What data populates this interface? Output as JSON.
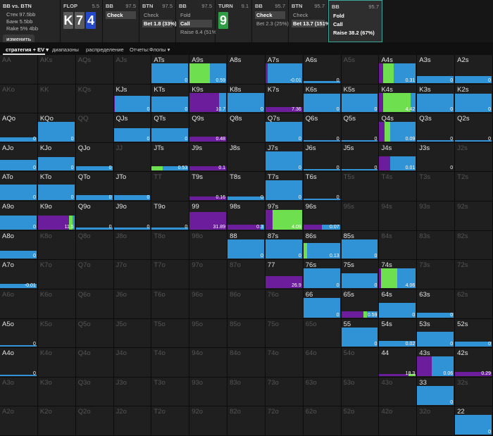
{
  "info": {
    "title": "BB vs. BTN",
    "lines": [
      "Стек 97.5bb",
      "Банк 5.5bb",
      "Rake 5% 4bb"
    ],
    "button": "изменить"
  },
  "header": [
    {
      "street": "FLOP",
      "pot": 5.5,
      "cards": [
        {
          "rank": "K",
          "color": "#5b5b5b"
        },
        {
          "rank": "7",
          "color": "#5b5b5b"
        },
        {
          "rank": "4",
          "color": "#2449c9"
        }
      ]
    },
    {
      "player": "BB",
      "stack": 97.5,
      "actions": [
        "Check"
      ],
      "selected": 0
    },
    {
      "player": "BTN",
      "stack": 97.5,
      "actions": [
        "Check",
        "Bet 1.8 (33%)"
      ],
      "selected": 1
    },
    {
      "player": "BB",
      "stack": 97.5,
      "actions": [
        "Fold",
        "Call",
        "Raise 6.4 (51%)"
      ],
      "selected": 1
    },
    {
      "street": "TURN",
      "pot": 9.1,
      "cards": [
        {
          "rank": "9",
          "color": "#2f9e44"
        }
      ]
    },
    {
      "player": "BB",
      "stack": 95.7,
      "actions": [
        "Check",
        "Bet 2.3 (25%)"
      ],
      "selected": 0
    },
    {
      "player": "BTN",
      "stack": 95.7,
      "actions": [
        "Check",
        "Bet 13.7 (151%)"
      ],
      "selected": 1
    },
    {
      "player": "BB",
      "stack": 95.7,
      "actions": [
        "Fold",
        "Call",
        "Raise 38.2 (67%)"
      ],
      "active": true
    }
  ],
  "tabs": [
    "стратегия + EV ▾",
    "диапазоны",
    "распределение",
    "Отчеты:Флопы ▾"
  ],
  "colors": {
    "raise": "#6c1d9c",
    "call": "#6ee04f",
    "fold": "#2f93d6"
  },
  "grid": [
    [
      {
        "hand": "AA"
      },
      {
        "hand": "AKs"
      },
      {
        "hand": "AQs"
      },
      {
        "hand": "AJs"
      },
      {
        "hand": "ATs",
        "weight": 100,
        "raise": 0,
        "call": 0,
        "fold": 100,
        "ev": 0
      },
      {
        "hand": "A9s",
        "weight": 100,
        "raise": 0,
        "call": 55,
        "fold": 45,
        "ev": 0.59
      },
      {
        "hand": "A8s",
        "weight": 0
      },
      {
        "hand": "A7s",
        "weight": 100,
        "raise": 5,
        "call": 0,
        "fold": 95,
        "ev": -0.01
      },
      {
        "hand": "A6s",
        "weight": 10,
        "raise": 0,
        "call": 0,
        "fold": 100,
        "ev": 0
      },
      {
        "hand": "A5s"
      },
      {
        "hand": "A4s",
        "weight": 100,
        "raise": 10,
        "call": 30,
        "fold": 60,
        "ev": 0.31
      },
      {
        "hand": "A3s",
        "weight": 35,
        "raise": 0,
        "call": 0,
        "fold": 100,
        "ev": 0
      },
      {
        "hand": "A2s",
        "weight": 35,
        "raise": 0,
        "call": 0,
        "fold": 100,
        "ev": 0
      }
    ],
    [
      {
        "hand": "AKo"
      },
      {
        "hand": "KK"
      },
      {
        "hand": "KQs"
      },
      {
        "hand": "KJs",
        "weight": 85,
        "raise": 3,
        "call": 0,
        "fold": 97,
        "ev": 0
      },
      {
        "hand": "KTs",
        "weight": 80,
        "raise": 0,
        "call": 0,
        "fold": 100,
        "ev": 0
      },
      {
        "hand": "K9s",
        "weight": 100,
        "raise": 80,
        "call": 0,
        "fold": 20,
        "ev": 10.7
      },
      {
        "hand": "K8s",
        "weight": 100,
        "raise": 0,
        "call": 0,
        "fold": 100,
        "ev": 0
      },
      {
        "hand": "K7s",
        "weight": 25,
        "raise": 100,
        "call": 0,
        "fold": 0,
        "ev": 7.36
      },
      {
        "hand": "K6s",
        "weight": 95,
        "raise": 0,
        "call": 0,
        "fold": 100,
        "ev": 0
      },
      {
        "hand": "K5s",
        "weight": 95,
        "raise": 0,
        "call": 0,
        "fold": 100,
        "ev": 0
      },
      {
        "hand": "K4s",
        "weight": 100,
        "raise": 10,
        "call": 75,
        "fold": 15,
        "ev": 4.42
      },
      {
        "hand": "K3s",
        "weight": 95,
        "raise": 0,
        "call": 0,
        "fold": 100,
        "ev": 0
      },
      {
        "hand": "K2s",
        "weight": 95,
        "raise": 0,
        "call": 0,
        "fold": 100,
        "ev": 0
      }
    ],
    [
      {
        "hand": "AQo",
        "weight": 20,
        "raise": 0,
        "call": 0,
        "fold": 100,
        "ev": 0
      },
      {
        "hand": "KQo",
        "weight": 100,
        "raise": 0,
        "call": 0,
        "fold": 100,
        "ev": 0
      },
      {
        "hand": "QQ"
      },
      {
        "hand": "QJs",
        "weight": 70,
        "raise": 0,
        "call": 0,
        "fold": 100,
        "ev": 0
      },
      {
        "hand": "QTs",
        "weight": 70,
        "raise": 0,
        "call": 0,
        "fold": 100,
        "ev": 0
      },
      {
        "hand": "Q9s",
        "weight": 25,
        "raise": 100,
        "call": 0,
        "fold": 0,
        "ev": 0.48
      },
      {
        "hand": "Q8s",
        "weight": 0
      },
      {
        "hand": "Q7s",
        "weight": 100,
        "raise": 0,
        "call": 0,
        "fold": 100,
        "ev": 0
      },
      {
        "hand": "Q6s",
        "weight": 8,
        "raise": 0,
        "call": 0,
        "fold": 100,
        "ev": 0
      },
      {
        "hand": "Q5s",
        "weight": 8,
        "raise": 0,
        "call": 0,
        "fold": 100,
        "ev": 0
      },
      {
        "hand": "Q4s",
        "weight": 100,
        "raise": 15,
        "call": 15,
        "fold": 70,
        "ev": 0.09
      },
      {
        "hand": "Q3s",
        "weight": 8,
        "raise": 0,
        "call": 0,
        "fold": 100,
        "ev": 0
      },
      {
        "hand": "Q2s",
        "weight": 8,
        "raise": 0,
        "call": 0,
        "fold": 100,
        "ev": 0
      }
    ],
    [
      {
        "hand": "AJo",
        "weight": 55,
        "raise": 0,
        "call": 0,
        "fold": 100,
        "ev": 0
      },
      {
        "hand": "KJo",
        "weight": 70,
        "raise": 0,
        "call": 0,
        "fold": 100,
        "ev": 0
      },
      {
        "hand": "QJo",
        "weight": 25,
        "raise": 0,
        "call": 0,
        "fold": 100,
        "ev": 0
      },
      {
        "hand": "JJ"
      },
      {
        "hand": "JTs",
        "weight": 25,
        "raise": 0,
        "call": 30,
        "fold": 70,
        "ev": 0.53
      },
      {
        "hand": "J9s",
        "weight": 25,
        "raise": 100,
        "call": 0,
        "fold": 0,
        "ev": 0.1
      },
      {
        "hand": "J8s",
        "weight": 0
      },
      {
        "hand": "J7s",
        "weight": 100,
        "raise": 0,
        "call": 0,
        "fold": 100,
        "ev": 0
      },
      {
        "hand": "J6s",
        "weight": 8,
        "raise": 0,
        "call": 0,
        "fold": 100,
        "ev": 0
      },
      {
        "hand": "J5s",
        "weight": 8,
        "raise": 0,
        "call": 0,
        "fold": 100,
        "ev": 0
      },
      {
        "hand": "J4s",
        "weight": 75,
        "raise": 30,
        "call": 0,
        "fold": 70,
        "ev": 0.01
      },
      {
        "hand": "J3s",
        "weight": 0,
        "ev": 0
      },
      {
        "hand": "J2s"
      }
    ],
    [
      {
        "hand": "ATo",
        "weight": 80,
        "raise": 0,
        "call": 0,
        "fold": 100,
        "ev": 0
      },
      {
        "hand": "KTo",
        "weight": 80,
        "raise": 0,
        "call": 0,
        "fold": 100,
        "ev": 0
      },
      {
        "hand": "QTo",
        "weight": 25,
        "raise": 0,
        "call": 0,
        "fold": 100,
        "ev": 0
      },
      {
        "hand": "JTo",
        "weight": 25,
        "raise": 0,
        "call": 0,
        "fold": 100,
        "ev": 0
      },
      {
        "hand": "TT"
      },
      {
        "hand": "T9s",
        "weight": 20,
        "raise": 100,
        "call": 0,
        "fold": 0,
        "ev": 0.16
      },
      {
        "hand": "T8s",
        "weight": 20,
        "raise": 0,
        "call": 0,
        "fold": 100,
        "ev": 0
      },
      {
        "hand": "T7s",
        "weight": 100,
        "raise": 0,
        "call": 0,
        "fold": 100,
        "ev": 0
      },
      {
        "hand": "T6s",
        "weight": 8,
        "raise": 0,
        "call": 0,
        "fold": 100,
        "ev": 0
      },
      {
        "hand": "T5s"
      },
      {
        "hand": "T4s"
      },
      {
        "hand": "T3s"
      },
      {
        "hand": "T2s"
      }
    ],
    [
      {
        "hand": "A9o",
        "weight": 70,
        "raise": 0,
        "call": 0,
        "fold": 100,
        "ev": 0
      },
      {
        "hand": "K9o",
        "weight": 70,
        "raise": 85,
        "call": 10,
        "fold": 5,
        "ev": 11.5
      },
      {
        "hand": "Q9o",
        "weight": 8,
        "raise": 0,
        "call": 0,
        "fold": 100,
        "ev": 0
      },
      {
        "hand": "J9o",
        "weight": 8,
        "raise": 0,
        "call": 0,
        "fold": 100,
        "ev": 0
      },
      {
        "hand": "T9o",
        "weight": 8,
        "raise": 0,
        "call": 0,
        "fold": 100,
        "ev": 0
      },
      {
        "hand": "99",
        "weight": 90,
        "raise": 100,
        "call": 0,
        "fold": 0,
        "ev": 31.89
      },
      {
        "hand": "98s",
        "weight": 25,
        "raise": 90,
        "call": 0,
        "fold": 10,
        "ev": 0.3
      },
      {
        "hand": "97s",
        "weight": 100,
        "raise": 20,
        "call": 80,
        "fold": 0,
        "ev": 4.09
      },
      {
        "hand": "96s",
        "weight": 25,
        "raise": 50,
        "call": 0,
        "fold": 50,
        "ev": 0.07
      },
      {
        "hand": "95s"
      },
      {
        "hand": "94s"
      },
      {
        "hand": "93s"
      },
      {
        "hand": "92s"
      }
    ],
    [
      {
        "hand": "A8o",
        "weight": 40,
        "raise": 0,
        "call": 0,
        "fold": 100,
        "ev": 0
      },
      {
        "hand": "K8o"
      },
      {
        "hand": "Q8o"
      },
      {
        "hand": "J8o"
      },
      {
        "hand": "T8o"
      },
      {
        "hand": "98o"
      },
      {
        "hand": "88",
        "weight": 100,
        "raise": 0,
        "call": 0,
        "fold": 100,
        "ev": 0
      },
      {
        "hand": "87s",
        "weight": 100,
        "raise": 0,
        "call": 0,
        "fold": 100,
        "ev": 0
      },
      {
        "hand": "86s",
        "weight": 80,
        "raise": 0,
        "call": 10,
        "fold": 90,
        "ev": 0.13
      },
      {
        "hand": "85s",
        "weight": 100,
        "raise": 0,
        "call": 0,
        "fold": 100,
        "ev": 0
      },
      {
        "hand": "84s"
      },
      {
        "hand": "83s"
      },
      {
        "hand": "82s"
      }
    ],
    [
      {
        "hand": "A7o",
        "weight": 20,
        "raise": 0,
        "call": 0,
        "fold": 100,
        "ev": -0.01
      },
      {
        "hand": "K7o"
      },
      {
        "hand": "Q7o"
      },
      {
        "hand": "J7o"
      },
      {
        "hand": "T7o"
      },
      {
        "hand": "97o"
      },
      {
        "hand": "87o"
      },
      {
        "hand": "77",
        "weight": 60,
        "raise": 100,
        "call": 0,
        "fold": 0,
        "ev": 26.9
      },
      {
        "hand": "76s",
        "weight": 100,
        "raise": 0,
        "call": 0,
        "fold": 100,
        "ev": 0
      },
      {
        "hand": "75s",
        "weight": 75,
        "raise": 0,
        "call": 0,
        "fold": 100,
        "ev": 0
      },
      {
        "hand": "74s",
        "weight": 100,
        "raise": 5,
        "call": 45,
        "fold": 50,
        "ev": 4.06
      },
      {
        "hand": "73s"
      },
      {
        "hand": "72s"
      }
    ],
    [
      {
        "hand": "A6o"
      },
      {
        "hand": "K6o"
      },
      {
        "hand": "Q6o"
      },
      {
        "hand": "J6o"
      },
      {
        "hand": "T6o"
      },
      {
        "hand": "96o"
      },
      {
        "hand": "86o"
      },
      {
        "hand": "76o"
      },
      {
        "hand": "66",
        "weight": 100,
        "raise": 0,
        "call": 0,
        "fold": 100,
        "ev": 0
      },
      {
        "hand": "65s",
        "weight": 30,
        "raise": 60,
        "call": 10,
        "fold": 30,
        "ev": 0.59
      },
      {
        "hand": "64s",
        "weight": 75,
        "raise": 0,
        "call": 0,
        "fold": 100,
        "ev": 0
      },
      {
        "hand": "63s",
        "weight": 25,
        "raise": 0,
        "call": 0,
        "fold": 100,
        "ev": 0
      },
      {
        "hand": "62s"
      }
    ],
    [
      {
        "hand": "A5o",
        "weight": 8,
        "raise": 0,
        "call": 0,
        "fold": 100,
        "ev": 0
      },
      {
        "hand": "K5o"
      },
      {
        "hand": "Q5o"
      },
      {
        "hand": "J5o"
      },
      {
        "hand": "T5o"
      },
      {
        "hand": "95o"
      },
      {
        "hand": "85o"
      },
      {
        "hand": "75o"
      },
      {
        "hand": "65o"
      },
      {
        "hand": "55",
        "weight": 100,
        "raise": 0,
        "call": 0,
        "fold": 100,
        "ev": 0
      },
      {
        "hand": "54s",
        "weight": 30,
        "raise": 0,
        "call": 0,
        "fold": 100,
        "ev": 0.02
      },
      {
        "hand": "53s",
        "weight": 75,
        "raise": 0,
        "call": 0,
        "fold": 100,
        "ev": 0
      },
      {
        "hand": "52s",
        "weight": 25,
        "raise": 0,
        "call": 0,
        "fold": 100,
        "ev": 0
      }
    ],
    [
      {
        "hand": "A4o",
        "weight": 8,
        "raise": 0,
        "call": 0,
        "fold": 100,
        "ev": 0
      },
      {
        "hand": "K4o"
      },
      {
        "hand": "Q4o"
      },
      {
        "hand": "J4o"
      },
      {
        "hand": "T4o"
      },
      {
        "hand": "94o"
      },
      {
        "hand": "84o"
      },
      {
        "hand": "74o"
      },
      {
        "hand": "64o"
      },
      {
        "hand": "54o"
      },
      {
        "hand": "44",
        "weight": 10,
        "raise": 80,
        "call": 20,
        "fold": 0,
        "ev": 18.3
      },
      {
        "hand": "43s",
        "weight": 100,
        "raise": 40,
        "call": 0,
        "fold": 60,
        "ev": 0.06
      },
      {
        "hand": "42s",
        "weight": 20,
        "raise": 100,
        "call": 0,
        "fold": 0,
        "ev": 0.29
      }
    ],
    [
      {
        "hand": "A3o"
      },
      {
        "hand": "K3o"
      },
      {
        "hand": "Q3o"
      },
      {
        "hand": "J3o"
      },
      {
        "hand": "T3o"
      },
      {
        "hand": "93o"
      },
      {
        "hand": "83o"
      },
      {
        "hand": "73o"
      },
      {
        "hand": "63o"
      },
      {
        "hand": "53o"
      },
      {
        "hand": "43o"
      },
      {
        "hand": "33",
        "weight": 100,
        "raise": 0,
        "call": 0,
        "fold": 100,
        "ev": 0
      },
      {
        "hand": "32s"
      }
    ],
    [
      {
        "hand": "A2o"
      },
      {
        "hand": "K2o"
      },
      {
        "hand": "Q2o"
      },
      {
        "hand": "J2o"
      },
      {
        "hand": "T2o"
      },
      {
        "hand": "92o"
      },
      {
        "hand": "82o"
      },
      {
        "hand": "72o"
      },
      {
        "hand": "62o"
      },
      {
        "hand": "52o"
      },
      {
        "hand": "42o"
      },
      {
        "hand": "32o"
      },
      {
        "hand": "22",
        "weight": 100,
        "raise": 0,
        "call": 0,
        "fold": 100,
        "ev": 0
      }
    ]
  ]
}
